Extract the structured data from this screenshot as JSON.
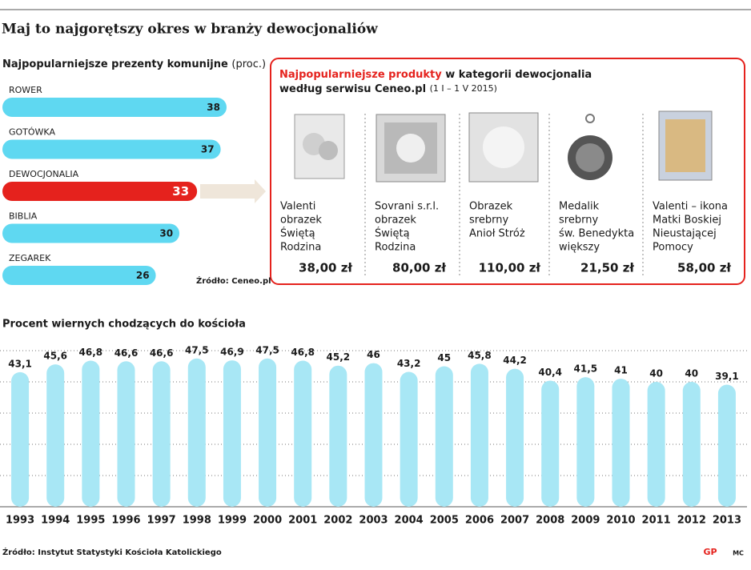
{
  "title": "Maj to najgorętszy okres w branży dewocjonaliów",
  "chart_data": [
    {
      "type": "barh",
      "title": "Najpopularniejsze prezenty komunijne",
      "subtitle": "(proc.)",
      "categories": [
        "ROWER",
        "GOTÓWKA",
        "DEWOCJONALIA",
        "BIBLIA",
        "ZEGAREK"
      ],
      "values": [
        38,
        37,
        33,
        30,
        26
      ],
      "colors": [
        "#5fd8f1",
        "#5fd8f1",
        "#e5221d",
        "#5fd8f1",
        "#5fd8f1"
      ],
      "label_colors": [
        "#1a1a1a",
        "#1a1a1a",
        "#ffffff",
        "#1a1a1a",
        "#1a1a1a"
      ],
      "source": "Źródło: Ceneo.pl"
    },
    {
      "type": "bar",
      "title": "Procent wiernych chodzących do kościoła",
      "categories": [
        "1993",
        "1994",
        "1995",
        "1996",
        "1997",
        "1998",
        "1999",
        "2000",
        "2001",
        "2002",
        "2003",
        "2004",
        "2005",
        "2006",
        "2007",
        "2008",
        "2009",
        "2010",
        "2011",
        "2012",
        "2013"
      ],
      "values": [
        43.1,
        45.6,
        46.8,
        46.6,
        46.6,
        47.5,
        46.9,
        47.5,
        46.8,
        45.2,
        46,
        43.2,
        45,
        45.8,
        44.2,
        40.4,
        41.5,
        41,
        40,
        40,
        39.1
      ],
      "value_labels": [
        "43,1",
        "45,6",
        "46,8",
        "46,6",
        "46,6",
        "47,5",
        "46,9",
        "47,5",
        "46,8",
        "45,2",
        "46",
        "43,2",
        "45",
        "45,8",
        "44,2",
        "40,4",
        "41,5",
        "41",
        "40",
        "40",
        "39,1"
      ],
      "color": "#a8e7f5",
      "ylim": [
        0,
        50
      ],
      "yticks": [
        0,
        10,
        20,
        30,
        40,
        50
      ],
      "grid": true,
      "source": "Źródło: Instytut Statystyki Kościoła Katolickiego"
    }
  ],
  "panel": {
    "title_highlight": "Najpopularniejsze produkty",
    "title_rest": " w kategorii dewocjonalia",
    "title_line2": "według serwisu Ceneo.pl",
    "period": "(1 I – 1 V 2015)",
    "products": [
      {
        "name": [
          "Valenti",
          "obrazek",
          "Świętą",
          "Rodzina"
        ],
        "price": "38,00 zł"
      },
      {
        "name": [
          "Sovrani s.r.l.",
          "obrazek",
          "Świętą",
          "Rodzina"
        ],
        "price": "80,00 zł"
      },
      {
        "name": [
          "Obrazek",
          "srebrny",
          "Anioł Stróż"
        ],
        "price": "110,00 zł"
      },
      {
        "name": [
          "Medalik",
          "srebrny",
          "św. Benedykta",
          "większy"
        ],
        "price": "21,50 zł"
      },
      {
        "name": [
          "Valenti – ikona",
          "Matki Boskiej",
          "Nieustającej",
          "Pomocy"
        ],
        "price": "58,00 zł"
      }
    ]
  },
  "logo": "GP",
  "author": "MC"
}
